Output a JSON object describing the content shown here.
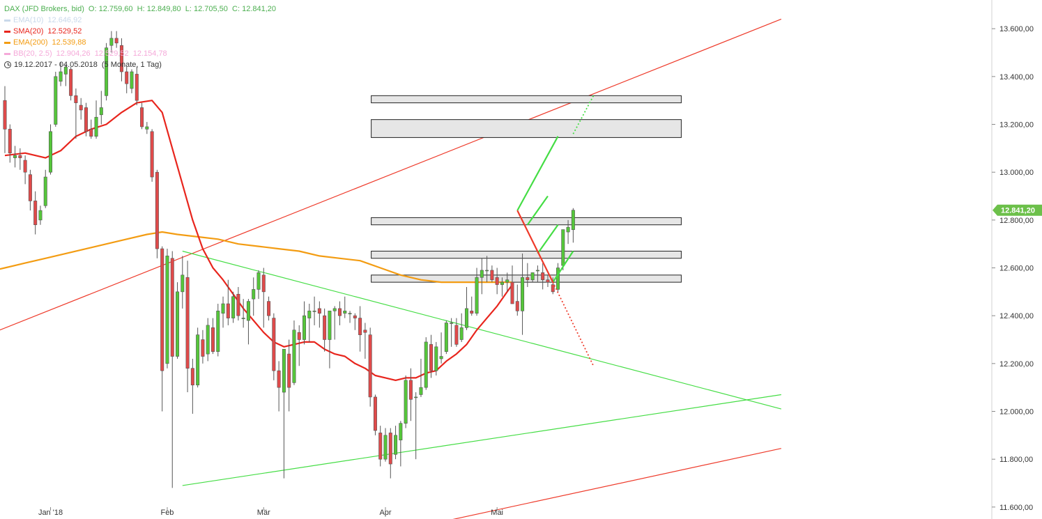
{
  "header": {
    "instrument": "DAX (JFD Brokers, bid)",
    "ohlc": "O: 12.759,60  H: 12.849,80  L: 12.705,50  C: 12.841,20",
    "date_range": "19.12.2017 - 04.05.2018",
    "period": "(5 Monate, 1 Tag)"
  },
  "indicators": [
    {
      "label": "EMA(10)",
      "value": "12.646,92",
      "color": "#c9d9ea"
    },
    {
      "label": "SMA(20)",
      "value": "12.529,52",
      "color": "#e8251d"
    },
    {
      "label": "EMA(200)",
      "value": "12.539,88",
      "color": "#f39c12"
    },
    {
      "label": "BB(20, 2.5)",
      "value": "12.904,26  12.529,52  12.154,78",
      "color": "#f5a9d9"
    }
  ],
  "colors": {
    "up": "#55c63a",
    "down": "#e04a4a",
    "sma": "#e8251d",
    "ema200": "#f39c12",
    "trend_red": "#ee3a2a",
    "trend_green": "#44dd44",
    "last_price_bg": "#6cc04a",
    "zone_fill": "#e6e6e6",
    "zone_stroke": "#222222"
  },
  "chart_data": {
    "type": "candlestick",
    "y_axis": {
      "min": 11550,
      "max": 13720,
      "ticks": [
        11600,
        11800,
        12000,
        12200,
        12400,
        12600,
        12800,
        13000,
        13200,
        13400,
        13600
      ],
      "tick_labels": [
        "11.600,00",
        "11.800,00",
        "12.000,00",
        "12.200,00",
        "12.400,00",
        "12.600,00",
        "12.800,00",
        "13.000,00",
        "13.200,00",
        "13.400,00",
        "13.600,00"
      ]
    },
    "x_axis": {
      "labels": [
        "Jan '18",
        "Feb",
        "Mär",
        "Apr",
        "Mai"
      ],
      "label_index": [
        9,
        32,
        51,
        75,
        97
      ]
    },
    "last_price": {
      "value": 12841.2,
      "label": "12.841,20"
    },
    "candles": [
      {
        "o": 13300,
        "h": 13360,
        "l": 13080,
        "c": 13180
      },
      {
        "o": 13180,
        "h": 13200,
        "l": 13040,
        "c": 13080
      },
      {
        "o": 13060,
        "h": 13110,
        "l": 13020,
        "c": 13070
      },
      {
        "o": 13070,
        "h": 13100,
        "l": 13010,
        "c": 13060
      },
      {
        "o": 13050,
        "h": 13070,
        "l": 12950,
        "c": 13000
      },
      {
        "o": 12990,
        "h": 13010,
        "l": 12840,
        "c": 12880
      },
      {
        "o": 12880,
        "h": 12920,
        "l": 12740,
        "c": 12780
      },
      {
        "o": 12800,
        "h": 12860,
        "l": 12780,
        "c": 12840
      },
      {
        "o": 12860,
        "h": 13010,
        "l": 12850,
        "c": 12980
      },
      {
        "o": 13000,
        "h": 13200,
        "l": 12990,
        "c": 13170
      },
      {
        "o": 13200,
        "h": 13420,
        "l": 13190,
        "c": 13400
      },
      {
        "o": 13380,
        "h": 13460,
        "l": 13360,
        "c": 13420
      },
      {
        "o": 13410,
        "h": 13450,
        "l": 13360,
        "c": 13440
      },
      {
        "o": 13430,
        "h": 13440,
        "l": 13300,
        "c": 13320
      },
      {
        "o": 13320,
        "h": 13350,
        "l": 13140,
        "c": 13290
      },
      {
        "o": 13280,
        "h": 13310,
        "l": 13220,
        "c": 13260
      },
      {
        "o": 13270,
        "h": 13290,
        "l": 13150,
        "c": 13170
      },
      {
        "o": 13180,
        "h": 13220,
        "l": 13140,
        "c": 13150
      },
      {
        "o": 13150,
        "h": 13300,
        "l": 13140,
        "c": 13230
      },
      {
        "o": 13240,
        "h": 13340,
        "l": 13200,
        "c": 13270
      },
      {
        "o": 13320,
        "h": 13540,
        "l": 13300,
        "c": 13520
      },
      {
        "o": 13530,
        "h": 13590,
        "l": 13500,
        "c": 13560
      },
      {
        "o": 13560,
        "h": 13590,
        "l": 13520,
        "c": 13540
      },
      {
        "o": 13530,
        "h": 13560,
        "l": 13380,
        "c": 13420
      },
      {
        "o": 13420,
        "h": 13440,
        "l": 13330,
        "c": 13370
      },
      {
        "o": 13350,
        "h": 13430,
        "l": 13330,
        "c": 13420
      },
      {
        "o": 13410,
        "h": 13440,
        "l": 13280,
        "c": 13300
      },
      {
        "o": 13270,
        "h": 13290,
        "l": 13180,
        "c": 13190
      },
      {
        "o": 13180,
        "h": 13210,
        "l": 13160,
        "c": 13190
      },
      {
        "o": 13170,
        "h": 13180,
        "l": 12960,
        "c": 12980
      },
      {
        "o": 13000,
        "h": 13010,
        "l": 12640,
        "c": 12680
      },
      {
        "o": 12680,
        "h": 12690,
        "l": 12000,
        "c": 12170
      },
      {
        "o": 12200,
        "h": 12680,
        "l": 12180,
        "c": 12650
      },
      {
        "o": 12640,
        "h": 12670,
        "l": 11680,
        "c": 12230
      },
      {
        "o": 12230,
        "h": 12540,
        "l": 12220,
        "c": 12500
      },
      {
        "o": 12500,
        "h": 12650,
        "l": 12430,
        "c": 12570
      },
      {
        "o": 12560,
        "h": 12630,
        "l": 12080,
        "c": 12180
      },
      {
        "o": 12180,
        "h": 12220,
        "l": 11990,
        "c": 12110
      },
      {
        "o": 12110,
        "h": 12350,
        "l": 12100,
        "c": 12320
      },
      {
        "o": 12300,
        "h": 12340,
        "l": 12200,
        "c": 12230
      },
      {
        "o": 12240,
        "h": 12390,
        "l": 12210,
        "c": 12360
      },
      {
        "o": 12350,
        "h": 12390,
        "l": 12240,
        "c": 12250
      },
      {
        "o": 12250,
        "h": 12450,
        "l": 12230,
        "c": 12420
      },
      {
        "o": 12410,
        "h": 12480,
        "l": 12350,
        "c": 12450
      },
      {
        "o": 12450,
        "h": 12550,
        "l": 12360,
        "c": 12390
      },
      {
        "o": 12390,
        "h": 12500,
        "l": 12370,
        "c": 12480
      },
      {
        "o": 12490,
        "h": 12520,
        "l": 12380,
        "c": 12400
      },
      {
        "o": 12390,
        "h": 12470,
        "l": 12350,
        "c": 12390
      },
      {
        "o": 12380,
        "h": 12470,
        "l": 12280,
        "c": 12460
      },
      {
        "o": 12470,
        "h": 12560,
        "l": 12400,
        "c": 12510
      },
      {
        "o": 12510,
        "h": 12590,
        "l": 12470,
        "c": 12580
      },
      {
        "o": 12570,
        "h": 12600,
        "l": 12350,
        "c": 12500
      },
      {
        "o": 12460,
        "h": 12480,
        "l": 12380,
        "c": 12400
      },
      {
        "o": 12390,
        "h": 12410,
        "l": 12130,
        "c": 12170
      },
      {
        "o": 12170,
        "h": 12210,
        "l": 12000,
        "c": 12100
      },
      {
        "o": 12080,
        "h": 12260,
        "l": 11720,
        "c": 12260
      },
      {
        "o": 12240,
        "h": 12300,
        "l": 12000,
        "c": 12100
      },
      {
        "o": 12120,
        "h": 12380,
        "l": 12110,
        "c": 12340
      },
      {
        "o": 12330,
        "h": 12360,
        "l": 12190,
        "c": 12300
      },
      {
        "o": 12300,
        "h": 12460,
        "l": 12280,
        "c": 12400
      },
      {
        "o": 12390,
        "h": 12450,
        "l": 12290,
        "c": 12420
      },
      {
        "o": 12420,
        "h": 12480,
        "l": 12360,
        "c": 12420
      },
      {
        "o": 12430,
        "h": 12460,
        "l": 12350,
        "c": 12410
      },
      {
        "o": 12400,
        "h": 12430,
        "l": 12250,
        "c": 12300
      },
      {
        "o": 12300,
        "h": 12420,
        "l": 12180,
        "c": 12420
      },
      {
        "o": 12420,
        "h": 12440,
        "l": 12300,
        "c": 12430
      },
      {
        "o": 12430,
        "h": 12460,
        "l": 12360,
        "c": 12400
      },
      {
        "o": 12410,
        "h": 12480,
        "l": 12390,
        "c": 12420
      },
      {
        "o": 12410,
        "h": 12420,
        "l": 12370,
        "c": 12410
      },
      {
        "o": 12400,
        "h": 12410,
        "l": 12340,
        "c": 12390
      },
      {
        "o": 12390,
        "h": 12440,
        "l": 12250,
        "c": 12320
      },
      {
        "o": 12340,
        "h": 12370,
        "l": 12220,
        "c": 12330
      },
      {
        "o": 12320,
        "h": 12350,
        "l": 12020,
        "c": 12060
      },
      {
        "o": 12060,
        "h": 12070,
        "l": 11900,
        "c": 11920
      },
      {
        "o": 11910,
        "h": 11940,
        "l": 11770,
        "c": 11800
      },
      {
        "o": 11800,
        "h": 11930,
        "l": 11790,
        "c": 11900
      },
      {
        "o": 11910,
        "h": 11930,
        "l": 11720,
        "c": 11780
      },
      {
        "o": 11820,
        "h": 11940,
        "l": 11800,
        "c": 11900
      },
      {
        "o": 11880,
        "h": 11960,
        "l": 11770,
        "c": 11950
      },
      {
        "o": 11950,
        "h": 12150,
        "l": 11930,
        "c": 12130
      },
      {
        "o": 12130,
        "h": 12180,
        "l": 11960,
        "c": 12050
      },
      {
        "o": 12060,
        "h": 12080,
        "l": 11800,
        "c": 12060
      },
      {
        "o": 12070,
        "h": 12220,
        "l": 12060,
        "c": 12100
      },
      {
        "o": 12100,
        "h": 12310,
        "l": 12090,
        "c": 12290
      },
      {
        "o": 12280,
        "h": 12320,
        "l": 12140,
        "c": 12170
      },
      {
        "o": 12170,
        "h": 12290,
        "l": 12150,
        "c": 12270
      },
      {
        "o": 12220,
        "h": 12330,
        "l": 12200,
        "c": 12230
      },
      {
        "o": 12250,
        "h": 12380,
        "l": 12240,
        "c": 12370
      },
      {
        "o": 12370,
        "h": 12390,
        "l": 12270,
        "c": 12370
      },
      {
        "o": 12360,
        "h": 12390,
        "l": 12270,
        "c": 12280
      },
      {
        "o": 12300,
        "h": 12410,
        "l": 12290,
        "c": 12350
      },
      {
        "o": 12350,
        "h": 12520,
        "l": 12340,
        "c": 12430
      },
      {
        "o": 12420,
        "h": 12480,
        "l": 12400,
        "c": 12410
      },
      {
        "o": 12410,
        "h": 12600,
        "l": 12400,
        "c": 12560
      },
      {
        "o": 12560,
        "h": 12640,
        "l": 12490,
        "c": 12590
      },
      {
        "o": 12590,
        "h": 12650,
        "l": 12540,
        "c": 12590
      },
      {
        "o": 12590,
        "h": 12610,
        "l": 12540,
        "c": 12550
      },
      {
        "o": 12560,
        "h": 12600,
        "l": 12490,
        "c": 12530
      },
      {
        "o": 12530,
        "h": 12560,
        "l": 12480,
        "c": 12540
      },
      {
        "o": 12540,
        "h": 12580,
        "l": 12500,
        "c": 12550
      },
      {
        "o": 12540,
        "h": 12610,
        "l": 12450,
        "c": 12450
      },
      {
        "o": 12460,
        "h": 12530,
        "l": 12400,
        "c": 12420
      },
      {
        "o": 12420,
        "h": 12660,
        "l": 12320,
        "c": 12560
      },
      {
        "o": 12560,
        "h": 12620,
        "l": 12520,
        "c": 12550
      },
      {
        "o": 12550,
        "h": 12580,
        "l": 12540,
        "c": 12580
      },
      {
        "o": 12590,
        "h": 12610,
        "l": 12540,
        "c": 12590
      },
      {
        "o": 12580,
        "h": 12620,
        "l": 12510,
        "c": 12550
      },
      {
        "o": 12550,
        "h": 12570,
        "l": 12520,
        "c": 12540
      },
      {
        "o": 12530,
        "h": 12560,
        "l": 12490,
        "c": 12500
      },
      {
        "o": 12510,
        "h": 12620,
        "l": 12500,
        "c": 12600
      },
      {
        "o": 12610,
        "h": 12760,
        "l": 12590,
        "c": 12760
      },
      {
        "o": 12750,
        "h": 12800,
        "l": 12700,
        "c": 12770
      },
      {
        "o": 12759.6,
        "h": 12849.8,
        "l": 12705.5,
        "c": 12841.2
      }
    ],
    "sma20": [
      [
        0,
        13070
      ],
      [
        4,
        13080
      ],
      [
        8,
        13060
      ],
      [
        11,
        13090
      ],
      [
        14,
        13150
      ],
      [
        17,
        13180
      ],
      [
        20,
        13200
      ],
      [
        23,
        13250
      ],
      [
        26,
        13290
      ],
      [
        29,
        13300
      ],
      [
        31,
        13250
      ],
      [
        33,
        13100
      ],
      [
        35,
        12950
      ],
      [
        37,
        12800
      ],
      [
        39,
        12680
      ],
      [
        41,
        12600
      ],
      [
        43,
        12550
      ],
      [
        45,
        12490
      ],
      [
        47,
        12430
      ],
      [
        49,
        12380
      ],
      [
        51,
        12330
      ],
      [
        53,
        12290
      ],
      [
        55,
        12270
      ],
      [
        57,
        12280
      ],
      [
        59,
        12290
      ],
      [
        61,
        12290
      ],
      [
        63,
        12260
      ],
      [
        65,
        12240
      ],
      [
        67,
        12230
      ],
      [
        69,
        12200
      ],
      [
        71,
        12180
      ],
      [
        73,
        12150
      ],
      [
        75,
        12140
      ],
      [
        77,
        12130
      ],
      [
        79,
        12140
      ],
      [
        81,
        12140
      ],
      [
        83,
        12160
      ],
      [
        85,
        12170
      ],
      [
        87,
        12210
      ],
      [
        89,
        12240
      ],
      [
        91,
        12280
      ],
      [
        93,
        12340
      ],
      [
        95,
        12390
      ],
      [
        97,
        12440
      ],
      [
        99,
        12500
      ],
      [
        100,
        12529.52
      ]
    ],
    "ema200": [
      [
        0,
        12600
      ],
      [
        4,
        12620
      ],
      [
        8,
        12640
      ],
      [
        12,
        12660
      ],
      [
        16,
        12680
      ],
      [
        20,
        12700
      ],
      [
        24,
        12720
      ],
      [
        28,
        12740
      ],
      [
        31,
        12750
      ],
      [
        34,
        12740
      ],
      [
        38,
        12730
      ],
      [
        42,
        12720
      ],
      [
        46,
        12700
      ],
      [
        50,
        12690
      ],
      [
        54,
        12680
      ],
      [
        58,
        12670
      ],
      [
        62,
        12650
      ],
      [
        66,
        12640
      ],
      [
        70,
        12630
      ],
      [
        74,
        12600
      ],
      [
        78,
        12570
      ],
      [
        82,
        12550
      ],
      [
        86,
        12540
      ],
      [
        90,
        12540
      ],
      [
        94,
        12540
      ],
      [
        98,
        12540
      ],
      [
        100,
        12539.88
      ]
    ],
    "zones": [
      {
        "low": 13290,
        "high": 13320
      },
      {
        "low": 13145,
        "high": 13220
      },
      {
        "low": 12780,
        "high": 12810
      },
      {
        "low": 12640,
        "high": 12670
      },
      {
        "low": 12540,
        "high": 12570
      }
    ],
    "trend_lines": [
      {
        "color": "red",
        "from": [
          -17,
          12205
        ],
        "to": [
          153,
          13640
        ]
      },
      {
        "color": "red",
        "from": [
          69,
          11460
        ],
        "to": [
          153,
          11845
        ]
      },
      {
        "color": "green",
        "from": [
          35,
          12670
        ],
        "to": [
          153,
          12010
        ]
      },
      {
        "color": "green",
        "from": [
          35,
          11690
        ],
        "to": [
          153,
          12070
        ]
      }
    ],
    "scenario_up": [
      {
        "from": [
          101,
          12840
        ],
        "to": [
          109,
          13150
        ],
        "dashed": false
      },
      {
        "from": [
          112,
          13160
        ],
        "to": [
          116,
          13320
        ],
        "dashed": true
      },
      {
        "from": [
          103,
          12780
        ],
        "to": [
          107,
          12900
        ],
        "dashed": false
      },
      {
        "from": [
          105,
          12660
        ],
        "to": [
          109,
          12780
        ],
        "dashed": false
      },
      {
        "from": [
          108,
          12540
        ],
        "to": [
          112,
          12670
        ],
        "dashed": false
      }
    ],
    "scenario_down": [
      {
        "from": [
          101,
          12840
        ],
        "to": [
          108,
          12540
        ],
        "dashed": false
      },
      {
        "from": [
          108,
          12540
        ],
        "to": [
          116,
          12190
        ],
        "dashed": true
      }
    ]
  }
}
